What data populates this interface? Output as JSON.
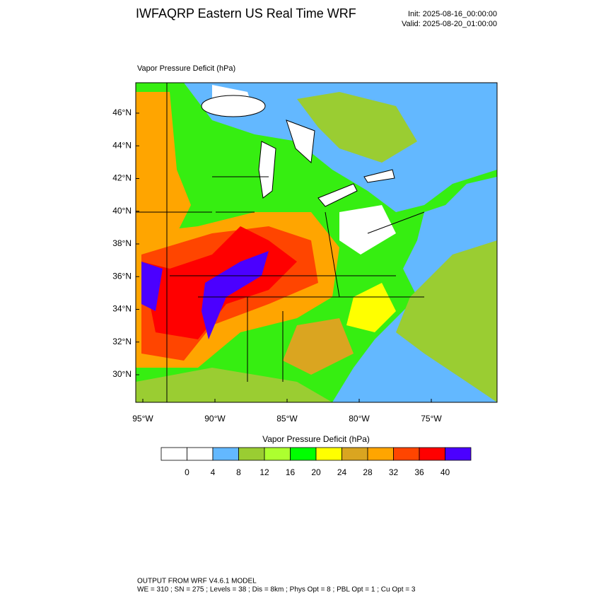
{
  "header": {
    "title": "IWFAQRP Eastern US Real Time WRF",
    "init": "Init: 2025-08-16_00:00:00",
    "valid": "Valid: 2025-08-20_01:00:00"
  },
  "map": {
    "field_label": "Vapor Pressure Deficit   (hPa)",
    "lat_labels": [
      "46°N",
      "44°N",
      "42°N",
      "40°N",
      "38°N",
      "36°N",
      "34°N",
      "32°N",
      "30°N"
    ],
    "lon_labels": [
      "95°W",
      "90°W",
      "85°W",
      "80°W",
      "75°W"
    ]
  },
  "colorbar": {
    "label": "Vapor Pressure Deficit  (hPa)",
    "levels": [
      0,
      4,
      8,
      12,
      16,
      20,
      24,
      28,
      32,
      36,
      40
    ],
    "colors": [
      "#ffffff",
      "#ffffff",
      "#63b8ff",
      "#9acd32",
      "#adff2f",
      "#00ff00",
      "#ffff00",
      "#daa520",
      "#ffa500",
      "#ff4500",
      "#ff0000",
      "#4b00ff"
    ]
  },
  "footer": {
    "line1": "OUTPUT FROM WRF V4.6.1 MODEL",
    "line2": "WE = 310 ; SN = 275 ; Levels = 38 ; Dis = 8km ; Phys Opt = 8 ; PBL Opt = 1 ; Cu Opt = 3"
  }
}
